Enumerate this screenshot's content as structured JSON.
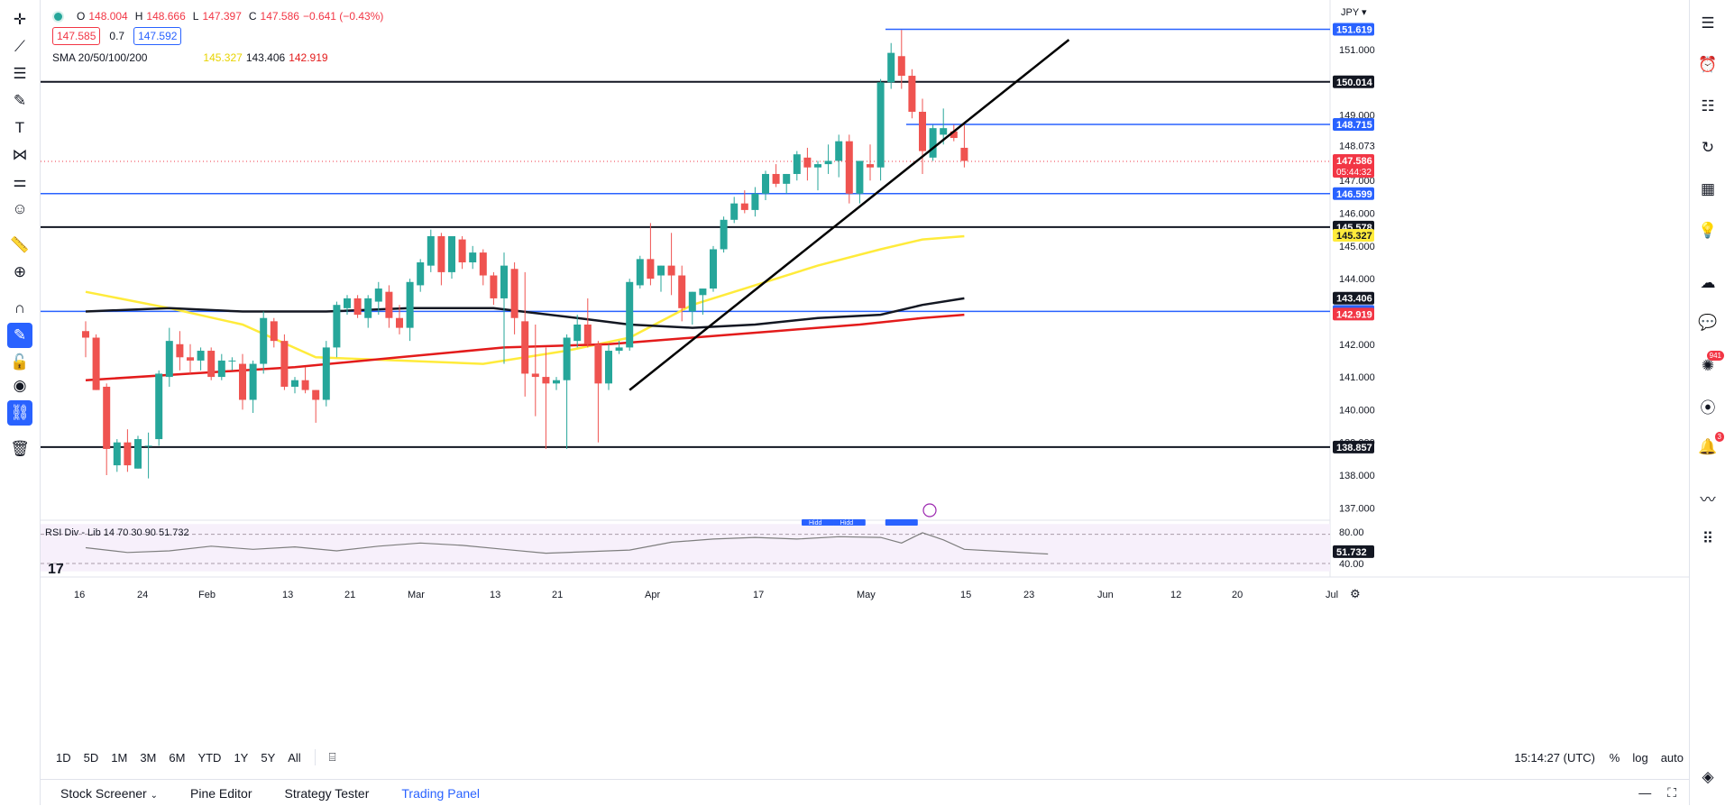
{
  "legend": {
    "o_label": "O",
    "o_value": "148.004",
    "h_label": "H",
    "h_value": "148.666",
    "l_label": "L",
    "l_value": "147.397",
    "c_label": "C",
    "c_value": "147.586",
    "change": "−0.641 (−0.43%)",
    "bid": "147.585",
    "spread": "0.7",
    "ask": "147.592",
    "sma_label": "SMA 20/50/100/200",
    "sma_values": [
      "145.327",
      "143.406",
      "142.919"
    ]
  },
  "currency": "JPY",
  "rsi": {
    "label": "RSI Div - Lib 14 70 30 90",
    "value": "51.732",
    "axis": [
      "80.00",
      "40.00"
    ],
    "last": "51.732",
    "markers": [
      "Hidd",
      "Hidd",
      ""
    ]
  },
  "price_axis": [
    {
      "label": "151.000",
      "v": 151.0
    },
    {
      "label": "149.000",
      "v": 149.0
    },
    {
      "label": "148.073",
      "v": 148.073
    },
    {
      "label": "147.000",
      "v": 147.0
    },
    {
      "label": "146.000",
      "v": 146.0
    },
    {
      "label": "145.000",
      "v": 145.0
    },
    {
      "label": "144.000",
      "v": 144.0
    },
    {
      "label": "142.000",
      "v": 142.0
    },
    {
      "label": "141.000",
      "v": 141.0
    },
    {
      "label": "140.000",
      "v": 140.0
    },
    {
      "label": "139.000",
      "v": 139.0
    },
    {
      "label": "138.000",
      "v": 138.0
    },
    {
      "label": "137.000",
      "v": 137.0
    }
  ],
  "price_tags": [
    {
      "label": "151.619",
      "v": 151.619,
      "bg": "#2962ff",
      "fg": "#ffffff"
    },
    {
      "label": "150.014",
      "v": 150.014,
      "bg": "#131722",
      "fg": "#ffffff"
    },
    {
      "label": "148.715",
      "v": 148.715,
      "bg": "#2962ff",
      "fg": "#ffffff"
    },
    {
      "label": "147.586",
      "sub": "05:44:32",
      "v": 147.586,
      "bg": "#f23645",
      "fg": "#ffffff"
    },
    {
      "label": "146.599",
      "v": 146.599,
      "bg": "#2962ff",
      "fg": "#ffffff"
    },
    {
      "label": "145.578",
      "v": 145.578,
      "bg": "#131722",
      "fg": "#ffffff"
    },
    {
      "label": "145.327",
      "v": 145.327,
      "bg": "#ffeb3b",
      "fg": "#131722"
    },
    {
      "label": "143.406",
      "v": 143.406,
      "bg": "#131722",
      "fg": "#ffffff"
    },
    {
      "label": "143.001",
      "v": 143.001,
      "bg": "#2962ff",
      "fg": "#ffffff"
    },
    {
      "label": "142.919",
      "v": 142.919,
      "bg": "#f23645",
      "fg": "#ffffff"
    },
    {
      "label": "138.857",
      "v": 138.857,
      "bg": "#131722",
      "fg": "#ffffff"
    }
  ],
  "time_axis": [
    "16",
    "24",
    "Feb",
    "13",
    "21",
    "Mar",
    "13",
    "21",
    "Apr",
    "17",
    "May",
    "15",
    "23",
    "Jun",
    "12",
    "20",
    "Jul"
  ],
  "timeframes": [
    "1D",
    "5D",
    "1M",
    "3M",
    "6M",
    "YTD",
    "1Y",
    "5Y",
    "All"
  ],
  "time_display": "15:14:27 (UTC)",
  "scale_options": [
    "%",
    "log",
    "auto"
  ],
  "bottom_tabs": [
    "Stock Screener",
    "Pine Editor",
    "Strategy Tester",
    "Trading Panel"
  ],
  "right_badges": {
    "ideas": "941",
    "alerts": "3"
  },
  "colors": {
    "up": "#26a69a",
    "down": "#ef5350",
    "blue_line": "#2962ff",
    "sma_yellow": "#ffeb3b",
    "sma_black": "#131722",
    "sma_red": "#e31b1b"
  },
  "left_tools": [
    "crosshair-icon",
    "trend-line-icon",
    "fib-icon",
    "brush-icon",
    "text-icon",
    "pattern-icon",
    "forecast-icon",
    "emoji-icon",
    "ruler-icon",
    "zoom-icon",
    "magnet-icon",
    "lock-drawing-icon",
    "lock-icon",
    "eye-icon",
    "link-icon",
    "trash-icon"
  ],
  "right_tools": [
    "watchlist-icon",
    "alarm-clock-icon",
    "list-icon",
    "replay-icon",
    "calendar-icon",
    "lightbulb-icon",
    "cloud-icon",
    "chat-icon",
    "ideas-icon",
    "broadcast-icon",
    "bell-icon",
    "pulse-icon",
    "grid-icon",
    "layers-icon"
  ],
  "chart_data": {
    "type": "candlestick",
    "symbol_currency": "JPY",
    "ylim": [
      136.6,
      152.0
    ],
    "candles": [
      {
        "o": 142.4,
        "h": 142.7,
        "l": 141.6,
        "c": 142.2
      },
      {
        "o": 142.2,
        "h": 142.3,
        "l": 140.6,
        "c": 140.6
      },
      {
        "o": 140.7,
        "h": 140.8,
        "l": 138.0,
        "c": 138.8
      },
      {
        "o": 138.3,
        "h": 139.1,
        "l": 138.1,
        "c": 139.0
      },
      {
        "o": 139.0,
        "h": 139.4,
        "l": 138.1,
        "c": 138.3
      },
      {
        "o": 138.2,
        "h": 139.2,
        "l": 138.2,
        "c": 139.1
      },
      {
        "o": 138.9,
        "h": 139.3,
        "l": 137.9,
        "c": 138.9
      },
      {
        "o": 139.1,
        "h": 141.2,
        "l": 138.9,
        "c": 141.1
      },
      {
        "o": 141.0,
        "h": 142.5,
        "l": 140.7,
        "c": 142.1
      },
      {
        "o": 142.0,
        "h": 142.4,
        "l": 141.2,
        "c": 141.6
      },
      {
        "o": 141.6,
        "h": 142.0,
        "l": 141.1,
        "c": 141.5
      },
      {
        "o": 141.5,
        "h": 141.9,
        "l": 141.2,
        "c": 141.8
      },
      {
        "o": 141.8,
        "h": 141.9,
        "l": 140.9,
        "c": 141.0
      },
      {
        "o": 141.0,
        "h": 141.7,
        "l": 140.9,
        "c": 141.5
      },
      {
        "o": 141.5,
        "h": 141.6,
        "l": 141.2,
        "c": 141.5
      },
      {
        "o": 141.4,
        "h": 141.7,
        "l": 140.0,
        "c": 140.3
      },
      {
        "o": 140.3,
        "h": 141.5,
        "l": 139.9,
        "c": 141.4
      },
      {
        "o": 141.4,
        "h": 143.0,
        "l": 141.1,
        "c": 142.8
      },
      {
        "o": 142.7,
        "h": 142.8,
        "l": 141.9,
        "c": 142.1
      },
      {
        "o": 142.1,
        "h": 142.3,
        "l": 140.6,
        "c": 140.7
      },
      {
        "o": 140.7,
        "h": 141.0,
        "l": 140.5,
        "c": 140.9
      },
      {
        "o": 140.9,
        "h": 141.3,
        "l": 140.5,
        "c": 140.6
      },
      {
        "o": 140.6,
        "h": 140.6,
        "l": 139.6,
        "c": 140.3
      },
      {
        "o": 140.3,
        "h": 142.1,
        "l": 140.1,
        "c": 141.9
      },
      {
        "o": 141.9,
        "h": 143.3,
        "l": 141.6,
        "c": 143.2
      },
      {
        "o": 143.1,
        "h": 143.5,
        "l": 142.9,
        "c": 143.4
      },
      {
        "o": 143.4,
        "h": 143.5,
        "l": 142.8,
        "c": 142.9
      },
      {
        "o": 142.8,
        "h": 143.5,
        "l": 142.5,
        "c": 143.4
      },
      {
        "o": 143.3,
        "h": 143.9,
        "l": 142.9,
        "c": 143.7
      },
      {
        "o": 143.6,
        "h": 143.8,
        "l": 142.5,
        "c": 142.8
      },
      {
        "o": 142.8,
        "h": 143.2,
        "l": 142.3,
        "c": 142.5
      },
      {
        "o": 142.5,
        "h": 144.0,
        "l": 142.1,
        "c": 143.9
      },
      {
        "o": 143.8,
        "h": 144.6,
        "l": 143.6,
        "c": 144.5
      },
      {
        "o": 144.4,
        "h": 145.5,
        "l": 144.2,
        "c": 145.3
      },
      {
        "o": 145.3,
        "h": 145.4,
        "l": 143.8,
        "c": 144.2
      },
      {
        "o": 144.2,
        "h": 145.3,
        "l": 144.0,
        "c": 145.3
      },
      {
        "o": 145.2,
        "h": 145.3,
        "l": 144.3,
        "c": 144.5
      },
      {
        "o": 144.5,
        "h": 145.0,
        "l": 144.3,
        "c": 144.8
      },
      {
        "o": 144.8,
        "h": 144.9,
        "l": 143.8,
        "c": 144.1
      },
      {
        "o": 144.1,
        "h": 144.2,
        "l": 143.2,
        "c": 143.4
      },
      {
        "o": 143.4,
        "h": 144.8,
        "l": 141.4,
        "c": 144.4
      },
      {
        "o": 144.3,
        "h": 144.5,
        "l": 142.3,
        "c": 142.8
      },
      {
        "o": 142.7,
        "h": 144.2,
        "l": 140.4,
        "c": 141.1
      },
      {
        "o": 141.1,
        "h": 142.6,
        "l": 139.8,
        "c": 141.0
      },
      {
        "o": 141.0,
        "h": 141.9,
        "l": 138.8,
        "c": 140.8
      },
      {
        "o": 140.8,
        "h": 141.0,
        "l": 140.6,
        "c": 140.9
      },
      {
        "o": 140.9,
        "h": 142.3,
        "l": 138.8,
        "c": 142.2
      },
      {
        "o": 142.1,
        "h": 142.9,
        "l": 141.9,
        "c": 142.6
      },
      {
        "o": 142.6,
        "h": 143.4,
        "l": 141.9,
        "c": 142.0
      },
      {
        "o": 142.0,
        "h": 142.1,
        "l": 139.0,
        "c": 140.8
      },
      {
        "o": 140.8,
        "h": 142.0,
        "l": 140.6,
        "c": 141.8
      },
      {
        "o": 141.8,
        "h": 142.1,
        "l": 141.7,
        "c": 141.9
      },
      {
        "o": 141.9,
        "h": 144.0,
        "l": 141.8,
        "c": 143.9
      },
      {
        "o": 143.8,
        "h": 144.7,
        "l": 143.7,
        "c": 144.6
      },
      {
        "o": 144.6,
        "h": 145.7,
        "l": 143.8,
        "c": 144.0
      },
      {
        "o": 144.1,
        "h": 144.4,
        "l": 143.6,
        "c": 144.4
      },
      {
        "o": 144.4,
        "h": 145.4,
        "l": 143.5,
        "c": 144.1
      },
      {
        "o": 144.1,
        "h": 144.4,
        "l": 142.7,
        "c": 143.1
      },
      {
        "o": 143.0,
        "h": 143.6,
        "l": 142.6,
        "c": 143.6
      },
      {
        "o": 143.5,
        "h": 143.7,
        "l": 142.9,
        "c": 143.7
      },
      {
        "o": 143.7,
        "h": 145.0,
        "l": 143.6,
        "c": 144.9
      },
      {
        "o": 144.9,
        "h": 145.9,
        "l": 144.8,
        "c": 145.8
      },
      {
        "o": 145.8,
        "h": 146.5,
        "l": 145.7,
        "c": 146.3
      },
      {
        "o": 146.3,
        "h": 146.7,
        "l": 146.0,
        "c": 146.1
      },
      {
        "o": 146.1,
        "h": 146.8,
        "l": 145.9,
        "c": 146.6
      },
      {
        "o": 146.6,
        "h": 147.3,
        "l": 146.4,
        "c": 147.2
      },
      {
        "o": 147.2,
        "h": 147.5,
        "l": 146.8,
        "c": 146.9
      },
      {
        "o": 146.9,
        "h": 147.2,
        "l": 146.6,
        "c": 147.2
      },
      {
        "o": 147.2,
        "h": 147.9,
        "l": 147.0,
        "c": 147.8
      },
      {
        "o": 147.7,
        "h": 148.0,
        "l": 147.0,
        "c": 147.4
      },
      {
        "o": 147.4,
        "h": 147.6,
        "l": 146.7,
        "c": 147.5
      },
      {
        "o": 147.5,
        "h": 148.1,
        "l": 147.2,
        "c": 147.6
      },
      {
        "o": 147.6,
        "h": 148.4,
        "l": 147.1,
        "c": 148.2
      },
      {
        "o": 148.2,
        "h": 148.4,
        "l": 146.3,
        "c": 146.6
      },
      {
        "o": 146.6,
        "h": 147.6,
        "l": 146.3,
        "c": 147.6
      },
      {
        "o": 147.5,
        "h": 148.1,
        "l": 147.0,
        "c": 147.4
      },
      {
        "o": 147.4,
        "h": 150.1,
        "l": 147.0,
        "c": 150.0
      },
      {
        "o": 150.0,
        "h": 151.2,
        "l": 149.8,
        "c": 150.9
      },
      {
        "o": 150.8,
        "h": 151.6,
        "l": 149.8,
        "c": 150.2
      },
      {
        "o": 150.2,
        "h": 150.4,
        "l": 148.9,
        "c": 149.1
      },
      {
        "o": 149.1,
        "h": 149.5,
        "l": 147.2,
        "c": 147.9
      },
      {
        "o": 147.7,
        "h": 148.7,
        "l": 147.6,
        "c": 148.6
      },
      {
        "o": 148.4,
        "h": 149.2,
        "l": 148.1,
        "c": 148.6
      },
      {
        "o": 148.5,
        "h": 148.7,
        "l": 148.2,
        "c": 148.3
      },
      {
        "o": 148.0,
        "h": 148.7,
        "l": 147.4,
        "c": 147.6
      }
    ],
    "first_candle_x": 50,
    "candle_spacing": 11.6,
    "horizontal_levels": [
      {
        "v": 151.619,
        "color": "#2962ff",
        "from_x": 937
      },
      {
        "v": 150.014,
        "color": "#131722",
        "from_x": 0
      },
      {
        "v": 148.715,
        "color": "#2962ff",
        "from_x": 960
      },
      {
        "v": 146.599,
        "color": "#2962ff",
        "from_x": 0
      },
      {
        "v": 145.578,
        "color": "#131722",
        "from_x": 0
      },
      {
        "v": 143.001,
        "color": "#2962ff",
        "from_x": 0
      },
      {
        "v": 138.857,
        "color": "#131722",
        "from_x": 0
      }
    ],
    "trendline": {
      "from": {
        "i": 52,
        "v": 140.6
      },
      "to": {
        "i": 94,
        "v": 151.3
      }
    },
    "sma_20": [
      [
        0,
        143.6
      ],
      [
        8,
        143.1
      ],
      [
        15,
        142.6
      ],
      [
        22,
        141.6
      ],
      [
        30,
        141.5
      ],
      [
        38,
        141.4
      ],
      [
        46,
        141.8
      ],
      [
        52,
        142.2
      ],
      [
        58,
        143.2
      ],
      [
        64,
        143.8
      ],
      [
        70,
        144.4
      ],
      [
        76,
        144.9
      ],
      [
        80,
        145.2
      ],
      [
        84,
        145.3
      ]
    ],
    "sma_100": [
      [
        0,
        143.0
      ],
      [
        8,
        143.1
      ],
      [
        15,
        143.0
      ],
      [
        23,
        143.0
      ],
      [
        31,
        143.1
      ],
      [
        39,
        143.1
      ],
      [
        47,
        142.8
      ],
      [
        52,
        142.6
      ],
      [
        58,
        142.5
      ],
      [
        64,
        142.6
      ],
      [
        70,
        142.8
      ],
      [
        76,
        142.9
      ],
      [
        80,
        143.2
      ],
      [
        84,
        143.4
      ]
    ],
    "sma_200": [
      [
        0,
        140.9
      ],
      [
        10,
        141.1
      ],
      [
        20,
        141.3
      ],
      [
        30,
        141.6
      ],
      [
        40,
        141.9
      ],
      [
        50,
        142.0
      ],
      [
        58,
        142.2
      ],
      [
        66,
        142.4
      ],
      [
        74,
        142.6
      ],
      [
        80,
        142.8
      ],
      [
        84,
        142.9
      ]
    ],
    "rsi_series": [
      [
        0,
        60
      ],
      [
        4,
        54
      ],
      [
        8,
        56
      ],
      [
        12,
        62
      ],
      [
        16,
        58
      ],
      [
        20,
        61
      ],
      [
        24,
        56
      ],
      [
        28,
        62
      ],
      [
        32,
        66
      ],
      [
        36,
        63
      ],
      [
        40,
        58
      ],
      [
        44,
        53
      ],
      [
        48,
        55
      ],
      [
        52,
        57
      ],
      [
        56,
        67
      ],
      [
        60,
        71
      ],
      [
        64,
        73
      ],
      [
        68,
        71
      ],
      [
        72,
        74
      ],
      [
        76,
        73
      ],
      [
        78,
        66
      ],
      [
        80,
        79
      ],
      [
        82,
        70
      ],
      [
        84,
        58
      ],
      [
        88,
        55
      ],
      [
        92,
        52
      ]
    ]
  }
}
